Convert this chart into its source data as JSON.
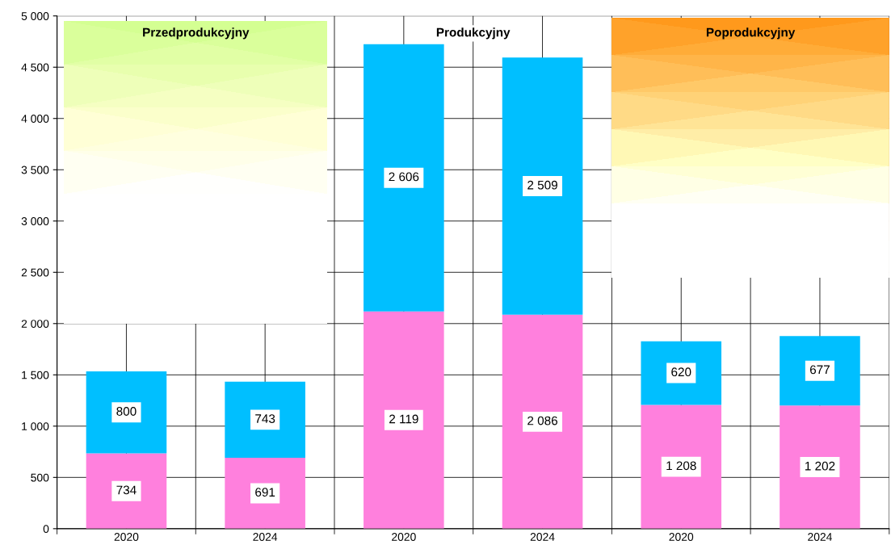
{
  "chart_data": {
    "type": "bar",
    "stacked": true,
    "categories": [
      "2020",
      "2024",
      "2020",
      "2024",
      "2020",
      "2024"
    ],
    "series": [
      {
        "color": "#ff80dd",
        "values": [
          734,
          691,
          2119,
          2086,
          1208,
          1202
        ],
        "value_labels": [
          "734",
          "691",
          "2 119",
          "2 086",
          "1 208",
          "1 202"
        ]
      },
      {
        "color": "#00bfff",
        "values": [
          800,
          743,
          2606,
          2509,
          620,
          677
        ],
        "value_labels": [
          "800",
          "743",
          "2 606",
          "2 509",
          "620",
          "677"
        ]
      }
    ],
    "ylim": [
      0,
      5000
    ],
    "yticks": [
      {
        "value": 0,
        "label": "0"
      },
      {
        "value": 500,
        "label": "500"
      },
      {
        "value": 1000,
        "label": "1 000"
      },
      {
        "value": 1500,
        "label": "1 500"
      },
      {
        "value": 2000,
        "label": "2 000"
      },
      {
        "value": 2500,
        "label": "2 500"
      },
      {
        "value": 3000,
        "label": "3 000"
      },
      {
        "value": 3500,
        "label": "3 500"
      },
      {
        "value": 4000,
        "label": "4 000"
      },
      {
        "value": 4500,
        "label": "4 500"
      },
      {
        "value": 5000,
        "label": "5 000"
      }
    ],
    "grid": true,
    "annotations": [
      "Przedprodukcyjny",
      "Produkcyjny",
      "Poprodukcyjny"
    ]
  }
}
